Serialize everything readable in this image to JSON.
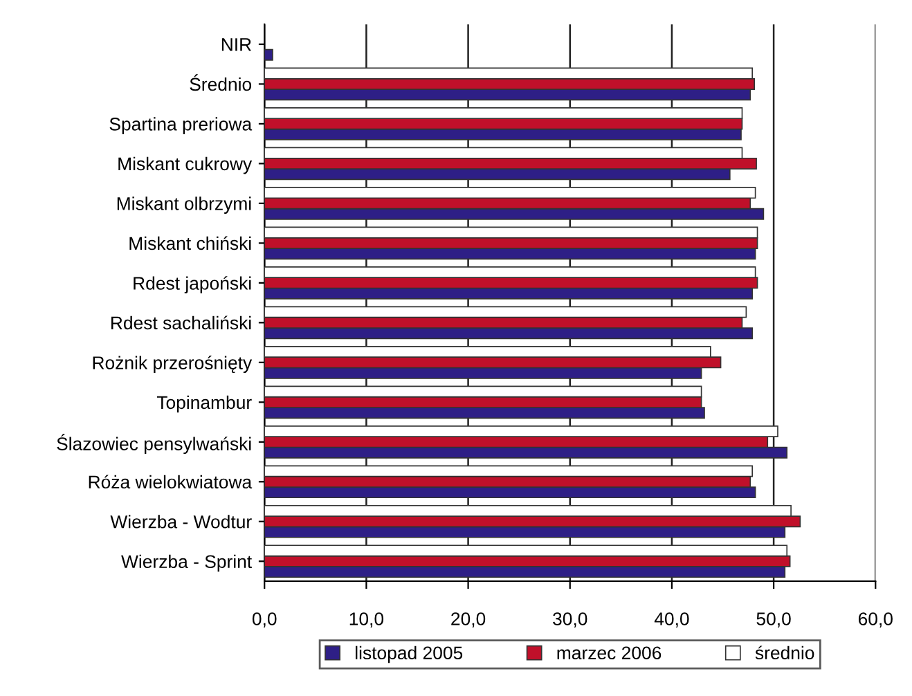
{
  "chart_data": {
    "type": "bar",
    "orientation": "horizontal",
    "categories": [
      "NIR",
      "Średnio",
      "Spartina preriowa",
      "Miskant cukrowy",
      "Miskant olbrzymi",
      "Miskant chiński",
      "Rdest japoński",
      "Rdest sachaliński",
      "Rożnik przerośnięty",
      "Topinambur",
      "Ślazowiec pensylwański",
      "Róża wielokwiatowa",
      "Wierzba - Wodtur",
      "Wierzba - Sprint"
    ],
    "series": [
      {
        "name": "listopad 2005",
        "color": "#2e1f86",
        "values": [
          0.8,
          47.7,
          46.8,
          45.7,
          49.0,
          48.2,
          47.9,
          47.9,
          42.9,
          43.2,
          51.3,
          48.2,
          51.1,
          51.1
        ]
      },
      {
        "name": "marzec 2006",
        "color": "#c0102a",
        "values": [
          null,
          48.1,
          46.9,
          48.3,
          47.7,
          48.4,
          48.4,
          46.9,
          44.8,
          42.9,
          49.4,
          47.7,
          52.6,
          51.6
        ]
      },
      {
        "name": "średnio",
        "color": "#ffffff",
        "values": [
          null,
          47.9,
          46.9,
          46.9,
          48.2,
          48.4,
          48.2,
          47.3,
          43.8,
          42.9,
          50.4,
          47.9,
          51.7,
          51.3
        ]
      }
    ],
    "xlim": [
      0,
      60
    ],
    "xticks": [
      {
        "value": 0,
        "label": "0,0"
      },
      {
        "value": 10,
        "label": "10,0"
      },
      {
        "value": 20,
        "label": "20,0"
      },
      {
        "value": 30,
        "label": "30,0"
      },
      {
        "value": 40,
        "label": "40,0"
      },
      {
        "value": 50,
        "label": "50,0"
      },
      {
        "value": 60,
        "label": "60,0"
      }
    ],
    "grid": "x",
    "legend": "bottom"
  }
}
